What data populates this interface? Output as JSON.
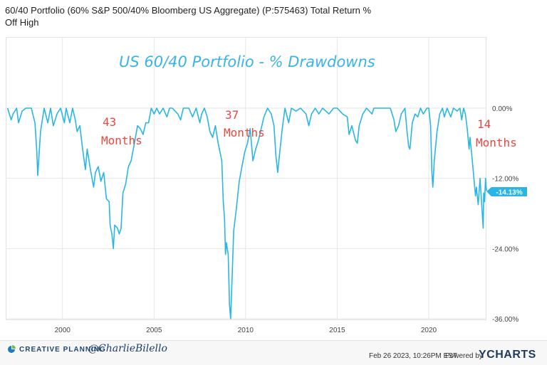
{
  "title": "60/40 Portfolio (60% S&P 500/40% Bloomberg US Aggregate) (P:575463) Total Return % Off High",
  "annotations": {
    "heading": "US 60/40 Portfolio - % Drawdowns",
    "a1_num": "43",
    "a1_label": "Months",
    "a2_num": "37",
    "a2_label": "Months",
    "a3_num": "14",
    "a3_label": "Months"
  },
  "current_value_badge": "-14.13%",
  "footer": {
    "logo_text": "CREATIVE PLANNING",
    "handle": "@CharlieBilello",
    "timestamp": "Feb 26 2023, 10:26PM EST.",
    "powered_by": "Powered by",
    "brand": "YCHARTS"
  },
  "colors": {
    "line": "#29b6e6",
    "annotation_heading": "#3ab3e8",
    "annotation_red": "#e8473d",
    "badge_bg": "#29b6e6",
    "grid": "#e6e6e6"
  },
  "chart_data": {
    "type": "line",
    "title": "60/40 Portfolio (60% S&P 500/40% Bloomberg US Aggregate) (P:575463) Total Return % Off High",
    "xlabel": "",
    "ylabel": "",
    "xlim": [
      1996.9,
      2023.15
    ],
    "ylim": [
      -36,
      0
    ],
    "x_ticks": [
      2000,
      2005,
      2010,
      2015,
      2020
    ],
    "x_tick_labels": [
      "2000",
      "2005",
      "2010",
      "2015",
      "2020"
    ],
    "y_ticks": [
      0,
      -12,
      -24,
      -36
    ],
    "y_tick_labels": [
      "0.00%",
      "-12.00%",
      "-24.00%",
      "-36.00%"
    ],
    "grid": true,
    "series": [
      {
        "values": [
          [
            1997.0,
            0
          ],
          [
            1997.2,
            -2
          ],
          [
            1997.3,
            -1
          ],
          [
            1997.5,
            0
          ],
          [
            1997.6,
            -2.5
          ],
          [
            1997.8,
            -0.5
          ],
          [
            1998.0,
            0
          ],
          [
            1998.3,
            0
          ],
          [
            1998.5,
            -2.5
          ],
          [
            1998.6,
            -7.5
          ],
          [
            1998.65,
            -11.5
          ],
          [
            1998.8,
            -4
          ],
          [
            1999.0,
            0
          ],
          [
            1999.2,
            -2.5
          ],
          [
            1999.35,
            0
          ],
          [
            1999.5,
            -3
          ],
          [
            1999.7,
            -1
          ],
          [
            1999.9,
            0
          ],
          [
            2000.1,
            -2.5
          ],
          [
            2000.2,
            0
          ],
          [
            2000.4,
            -2.5
          ],
          [
            2000.55,
            0
          ],
          [
            2000.7,
            -2
          ],
          [
            2000.8,
            -4
          ],
          [
            2000.95,
            -3
          ],
          [
            2001.1,
            -7
          ],
          [
            2001.25,
            -10.5
          ],
          [
            2001.35,
            -7
          ],
          [
            2001.5,
            -10
          ],
          [
            2001.7,
            -13.5
          ],
          [
            2001.8,
            -11
          ],
          [
            2001.95,
            -10
          ],
          [
            2002.1,
            -12.5
          ],
          [
            2002.25,
            -11
          ],
          [
            2002.4,
            -15.5
          ],
          [
            2002.55,
            -16
          ],
          [
            2002.6,
            -20
          ],
          [
            2002.7,
            -21.5
          ],
          [
            2002.78,
            -24
          ],
          [
            2002.85,
            -20
          ],
          [
            2003.0,
            -20.5
          ],
          [
            2003.1,
            -21.5
          ],
          [
            2003.2,
            -20.5
          ],
          [
            2003.3,
            -14.5
          ],
          [
            2003.45,
            -13
          ],
          [
            2003.6,
            -10
          ],
          [
            2003.75,
            -9
          ],
          [
            2003.9,
            -6.5
          ],
          [
            2004.1,
            -3
          ],
          [
            2004.25,
            -3.5
          ],
          [
            2004.4,
            -4.5
          ],
          [
            2004.55,
            -2.5
          ],
          [
            2004.7,
            -2.5
          ],
          [
            2004.85,
            0
          ],
          [
            2005.0,
            -1
          ],
          [
            2005.15,
            0
          ],
          [
            2005.3,
            -1
          ],
          [
            2005.5,
            0
          ],
          [
            2005.7,
            -1.5
          ],
          [
            2005.85,
            0
          ],
          [
            2006.0,
            0
          ],
          [
            2006.3,
            -1
          ],
          [
            2006.45,
            -2
          ],
          [
            2006.6,
            0
          ],
          [
            2006.9,
            0
          ],
          [
            2007.1,
            -1.5
          ],
          [
            2007.3,
            0
          ],
          [
            2007.5,
            -2.5
          ],
          [
            2007.6,
            -1
          ],
          [
            2007.75,
            0
          ],
          [
            2007.9,
            -1.5
          ],
          [
            2008.05,
            -4
          ],
          [
            2008.2,
            -5
          ],
          [
            2008.35,
            -3
          ],
          [
            2008.5,
            -6
          ],
          [
            2008.6,
            -7.5
          ],
          [
            2008.7,
            -9
          ],
          [
            2008.78,
            -16
          ],
          [
            2008.85,
            -19
          ],
          [
            2008.9,
            -25
          ],
          [
            2008.95,
            -23
          ],
          [
            2009.05,
            -25
          ],
          [
            2009.12,
            -33.5
          ],
          [
            2009.18,
            -36
          ],
          [
            2009.25,
            -30
          ],
          [
            2009.35,
            -21
          ],
          [
            2009.5,
            -17
          ],
          [
            2009.65,
            -12.5
          ],
          [
            2009.8,
            -10
          ],
          [
            2009.95,
            -7.5
          ],
          [
            2010.1,
            -6
          ],
          [
            2010.25,
            -3.5
          ],
          [
            2010.4,
            -9
          ],
          [
            2010.55,
            -7
          ],
          [
            2010.7,
            -5.5
          ],
          [
            2010.85,
            -3.5
          ],
          [
            2011.0,
            -1.5
          ],
          [
            2011.2,
            0
          ],
          [
            2011.4,
            -1
          ],
          [
            2011.55,
            -3
          ],
          [
            2011.65,
            -8
          ],
          [
            2011.75,
            -11
          ],
          [
            2011.85,
            -8
          ],
          [
            2012.0,
            -3.5
          ],
          [
            2012.15,
            0
          ],
          [
            2012.35,
            -2.5
          ],
          [
            2012.5,
            0
          ],
          [
            2012.75,
            -0.5
          ],
          [
            2013.0,
            0
          ],
          [
            2013.3,
            -1
          ],
          [
            2013.45,
            -3
          ],
          [
            2013.6,
            -1
          ],
          [
            2013.8,
            0
          ],
          [
            2014.0,
            -1
          ],
          [
            2014.2,
            0
          ],
          [
            2014.55,
            -1
          ],
          [
            2014.8,
            0
          ],
          [
            2015.0,
            0
          ],
          [
            2015.3,
            -1
          ],
          [
            2015.55,
            -1.5
          ],
          [
            2015.65,
            -4.5
          ],
          [
            2015.8,
            -3
          ],
          [
            2016.0,
            -5.5
          ],
          [
            2016.1,
            -6
          ],
          [
            2016.2,
            -3
          ],
          [
            2016.4,
            -1
          ],
          [
            2016.6,
            0
          ],
          [
            2016.9,
            -1
          ],
          [
            2017.0,
            0
          ],
          [
            2017.5,
            0
          ],
          [
            2017.9,
            0
          ],
          [
            2018.1,
            -2
          ],
          [
            2018.2,
            -4
          ],
          [
            2018.35,
            -3
          ],
          [
            2018.5,
            -1
          ],
          [
            2018.7,
            0
          ],
          [
            2018.8,
            -3.5
          ],
          [
            2018.9,
            -6.5
          ],
          [
            2018.97,
            -7
          ],
          [
            2019.1,
            -2.5
          ],
          [
            2019.25,
            -1
          ],
          [
            2019.4,
            -1.5
          ],
          [
            2019.55,
            0
          ],
          [
            2019.7,
            -1
          ],
          [
            2019.9,
            0
          ],
          [
            2020.0,
            0
          ],
          [
            2020.1,
            -3
          ],
          [
            2020.17,
            -11
          ],
          [
            2020.22,
            -13.5
          ],
          [
            2020.3,
            -9
          ],
          [
            2020.45,
            -4
          ],
          [
            2020.6,
            -1
          ],
          [
            2020.75,
            0
          ],
          [
            2020.85,
            -1.5
          ],
          [
            2021.0,
            0
          ],
          [
            2021.2,
            -1.5
          ],
          [
            2021.35,
            0
          ],
          [
            2021.55,
            -0.5
          ],
          [
            2021.7,
            0
          ],
          [
            2021.8,
            -2
          ],
          [
            2021.9,
            0
          ],
          [
            2022.0,
            -1
          ],
          [
            2022.1,
            -3.5
          ],
          [
            2022.2,
            -7
          ],
          [
            2022.25,
            -5
          ],
          [
            2022.35,
            -8
          ],
          [
            2022.45,
            -11.5
          ],
          [
            2022.55,
            -15
          ],
          [
            2022.6,
            -13.5
          ],
          [
            2022.7,
            -16.5
          ],
          [
            2022.8,
            -12
          ],
          [
            2022.9,
            -17
          ],
          [
            2022.97,
            -20.5
          ],
          [
            2023.0,
            -14.5
          ],
          [
            2023.05,
            -16
          ],
          [
            2023.1,
            -12
          ],
          [
            2023.15,
            -14.13
          ]
        ]
      }
    ]
  }
}
